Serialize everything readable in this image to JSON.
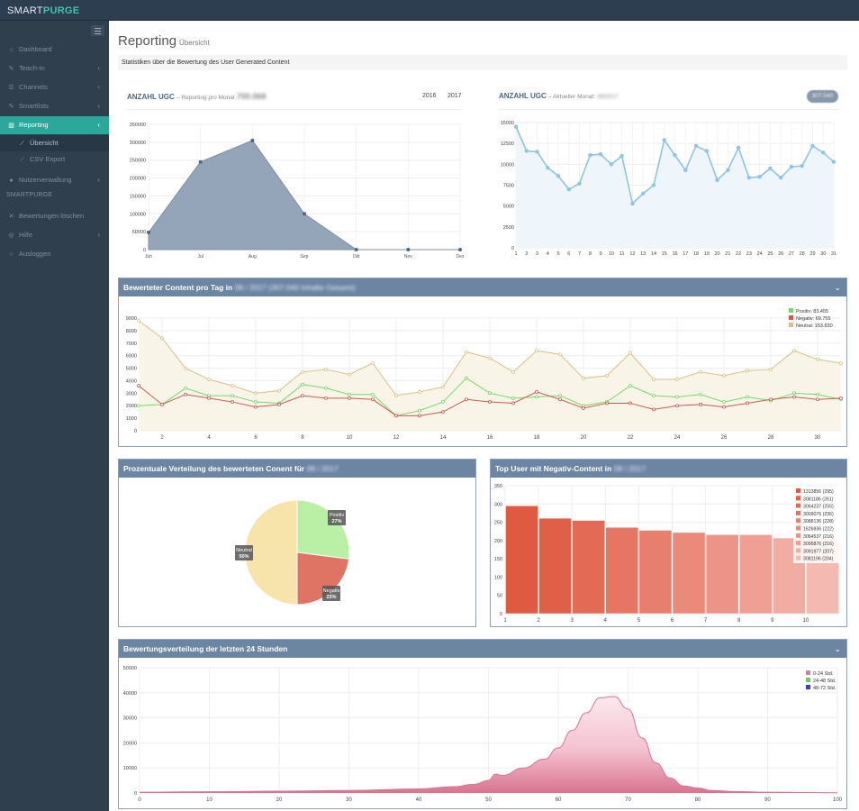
{
  "app": {
    "brand_light": "SMART",
    "brand_bold": "PURGE"
  },
  "sidebar": {
    "items": [
      {
        "label": "Dashboard",
        "icon": "home-icon",
        "glyph": "⌂",
        "chev": false,
        "active": false
      },
      {
        "label": "Teach-In",
        "icon": "graduation-cap-icon",
        "glyph": "✎",
        "chev": true,
        "active": false
      },
      {
        "label": "Channels",
        "icon": "sliders-icon",
        "glyph": "☰",
        "chev": true,
        "active": false
      },
      {
        "label": "Smartlists",
        "icon": "pencil-icon",
        "glyph": "✎",
        "chev": true,
        "active": false
      },
      {
        "label": "Reporting",
        "icon": "bar-chart-icon",
        "glyph": "▥",
        "chev": true,
        "active": true
      }
    ],
    "subitems": [
      {
        "label": "Übersicht",
        "icon": "line-chart-icon",
        "active": true
      },
      {
        "label": "CSV Export",
        "icon": "line-chart-icon",
        "active": false
      }
    ],
    "items2": [
      {
        "label": "Nutzerverwaltung",
        "icon": "user-icon",
        "glyph": "●",
        "chev": true
      }
    ],
    "section": "SMARTPURGE",
    "items3": [
      {
        "label": "Bewertungen löschen",
        "icon": "trash-icon",
        "glyph": "✕",
        "chev": false
      },
      {
        "label": "Hilfe",
        "icon": "globe-icon",
        "glyph": "◎",
        "chev": true
      },
      {
        "label": "Ausloggen",
        "icon": "power-icon",
        "glyph": "○",
        "chev": false
      }
    ]
  },
  "page": {
    "title": "Reporting",
    "subtitle": "Übersicht",
    "info": "Statistiken über die Bewertung des User Generated Content"
  },
  "ugc_month": {
    "title": "ANZAHL UGC",
    "subtitle": "– Reporting pro Monat",
    "total": "700.068",
    "years": [
      "2016",
      "2017"
    ]
  },
  "ugc_day": {
    "title": "ANZAHL UGC",
    "subtitle": "– Aktueller Monat:",
    "month": "08/2017",
    "badge": "307.040"
  },
  "panels": {
    "daily": {
      "title": "Bewerteter Content pro Tag in",
      "blur": "08 / 2017 (307.040 Inhalte Gesamt)"
    },
    "pie": {
      "title": "Prozentuale Verteilung des bewerteten Conent für",
      "blur": "08 / 2017"
    },
    "top": {
      "title": "Top User mit Negativ-Content in",
      "blur": "08 / 2017"
    },
    "h24": {
      "title": "Bewertungsverteilung der letzten 24 Stunden"
    }
  },
  "chart_data": [
    {
      "type": "area",
      "id": "monthly",
      "categories": [
        "Jun",
        "Jul",
        "Aug",
        "Sep",
        "Okt",
        "Nov",
        "Dez"
      ],
      "values": [
        48000,
        245000,
        305000,
        100000,
        0,
        0,
        0
      ],
      "ylim": [
        0,
        350000
      ],
      "yticks": [
        0,
        50000,
        100000,
        150000,
        200000,
        250000,
        300000,
        350000
      ],
      "color": "#8a9bb1"
    },
    {
      "type": "line",
      "id": "daymonth",
      "x": [
        1,
        2,
        3,
        4,
        5,
        6,
        7,
        8,
        9,
        10,
        11,
        12,
        13,
        14,
        15,
        16,
        17,
        18,
        19,
        20,
        21,
        22,
        23,
        24,
        25,
        26,
        27,
        28,
        29,
        30,
        31
      ],
      "values": [
        14500,
        11600,
        11500,
        9600,
        8600,
        7000,
        7700,
        11100,
        11200,
        10000,
        11000,
        5300,
        6500,
        7500,
        12900,
        11100,
        9300,
        12200,
        11600,
        8100,
        9300,
        12000,
        8400,
        8500,
        9500,
        8400,
        9700,
        9800,
        12200,
        11400,
        10300
      ],
      "ylim": [
        0,
        15000
      ],
      "yticks": [
        0,
        2500,
        5000,
        7500,
        10000,
        12500,
        15000
      ],
      "color": "#8ec5e4"
    },
    {
      "type": "line",
      "id": "daily",
      "x": [
        1,
        2,
        3,
        4,
        5,
        6,
        7,
        8,
        9,
        10,
        11,
        12,
        13,
        14,
        15,
        16,
        17,
        18,
        19,
        20,
        21,
        22,
        23,
        24,
        25,
        26,
        27,
        28,
        29,
        30,
        31
      ],
      "xticks": [
        2,
        4,
        6,
        8,
        10,
        12,
        14,
        16,
        18,
        20,
        22,
        24,
        26,
        28,
        30
      ],
      "ylim": [
        0,
        9000
      ],
      "yticks": [
        0,
        1000,
        2000,
        3000,
        4000,
        5000,
        6000,
        7000,
        8000,
        9000
      ],
      "legend_placement": "top-right",
      "series": [
        {
          "name": "Positiv: 83.455",
          "color": "#78d86a",
          "values": [
            2000,
            2100,
            3400,
            2800,
            2800,
            2300,
            2200,
            3700,
            3400,
            2900,
            2900,
            1200,
            1600,
            2300,
            4200,
            3000,
            2600,
            2700,
            2800,
            2000,
            2300,
            3600,
            2800,
            2700,
            2900,
            2300,
            2700,
            2400,
            3000,
            2900,
            2500
          ]
        },
        {
          "name": "Negativ: 69.755",
          "color": "#cf5a4e",
          "values": [
            3600,
            2100,
            2900,
            2600,
            2300,
            1900,
            2100,
            2800,
            2600,
            2600,
            2500,
            1200,
            1200,
            1500,
            2500,
            2300,
            2200,
            3100,
            2500,
            1800,
            2200,
            2200,
            1700,
            2000,
            2100,
            1900,
            2200,
            2500,
            2700,
            2500,
            2600
          ]
        },
        {
          "name": "Neutral: 153.830",
          "color": "#d9c08a",
          "values": [
            8800,
            7400,
            5000,
            4100,
            3600,
            3000,
            3200,
            4700,
            4900,
            4500,
            5400,
            2800,
            3100,
            3500,
            6300,
            5800,
            4700,
            6400,
            6100,
            4200,
            4400,
            6200,
            4100,
            4100,
            4700,
            4400,
            4800,
            4900,
            6400,
            5700,
            5400
          ]
        }
      ]
    },
    {
      "type": "pie",
      "id": "distribution",
      "labels": [
        "Positiv",
        "Negativ",
        "Neutral"
      ],
      "percent_labels": [
        "27%",
        "23%",
        "50%"
      ],
      "values": [
        27,
        23,
        50
      ],
      "colors": [
        "#b9f0a6",
        "#e07464",
        "#f7e4ab"
      ]
    },
    {
      "type": "bar",
      "id": "topusers",
      "categories": [
        "1",
        "2",
        "3",
        "4",
        "5",
        "6",
        "7",
        "8",
        "9",
        "10"
      ],
      "values": [
        295,
        261,
        255,
        236,
        228,
        222,
        216,
        216,
        207,
        204
      ],
      "ylim": [
        0,
        350
      ],
      "yticks": [
        0,
        50,
        100,
        150,
        200,
        250,
        300,
        350
      ],
      "legend": [
        "1313856 (295)",
        "3081186 (261)",
        "3064237 (255)",
        "3009076 (236)",
        "3088136 (228)",
        "1626836 (222)",
        "3064537 (216)",
        "3095876 (216)",
        "3091977 (207)",
        "3081196 (204)"
      ],
      "colors": [
        "#e05a41",
        "#e15f47",
        "#e36b55",
        "#e57663",
        "#e77f6e",
        "#ea8a7a",
        "#ec9487",
        "#ef9f93",
        "#f2ada3",
        "#f4b9b1"
      ]
    },
    {
      "type": "area",
      "id": "last24h",
      "xlim": [
        0,
        100
      ],
      "xticks": [
        0,
        10,
        20,
        30,
        40,
        50,
        60,
        70,
        80,
        90,
        100
      ],
      "ylim": [
        0,
        50000
      ],
      "yticks": [
        0,
        10000,
        20000,
        30000,
        40000,
        50000
      ],
      "legend": [
        {
          "label": "0-24 Std.",
          "color": "#e07e98"
        },
        {
          "label": "24-48 Std.",
          "color": "#5fd658"
        },
        {
          "label": "48-72 Std.",
          "color": "#3b3bd1"
        }
      ],
      "x": [
        0,
        10,
        20,
        30,
        40,
        45,
        48,
        50,
        51,
        52,
        55,
        58,
        60,
        62,
        64,
        66,
        68,
        70,
        72,
        74,
        76,
        78,
        80,
        82,
        85,
        90,
        95,
        100
      ],
      "values": [
        300,
        500,
        700,
        1000,
        1600,
        2500,
        3500,
        5000,
        7500,
        7000,
        10000,
        13500,
        18000,
        25000,
        32000,
        38000,
        38500,
        33500,
        22000,
        12000,
        6000,
        2800,
        2000,
        1000,
        600,
        300,
        200,
        100
      ],
      "color": "#d9748f"
    }
  ]
}
